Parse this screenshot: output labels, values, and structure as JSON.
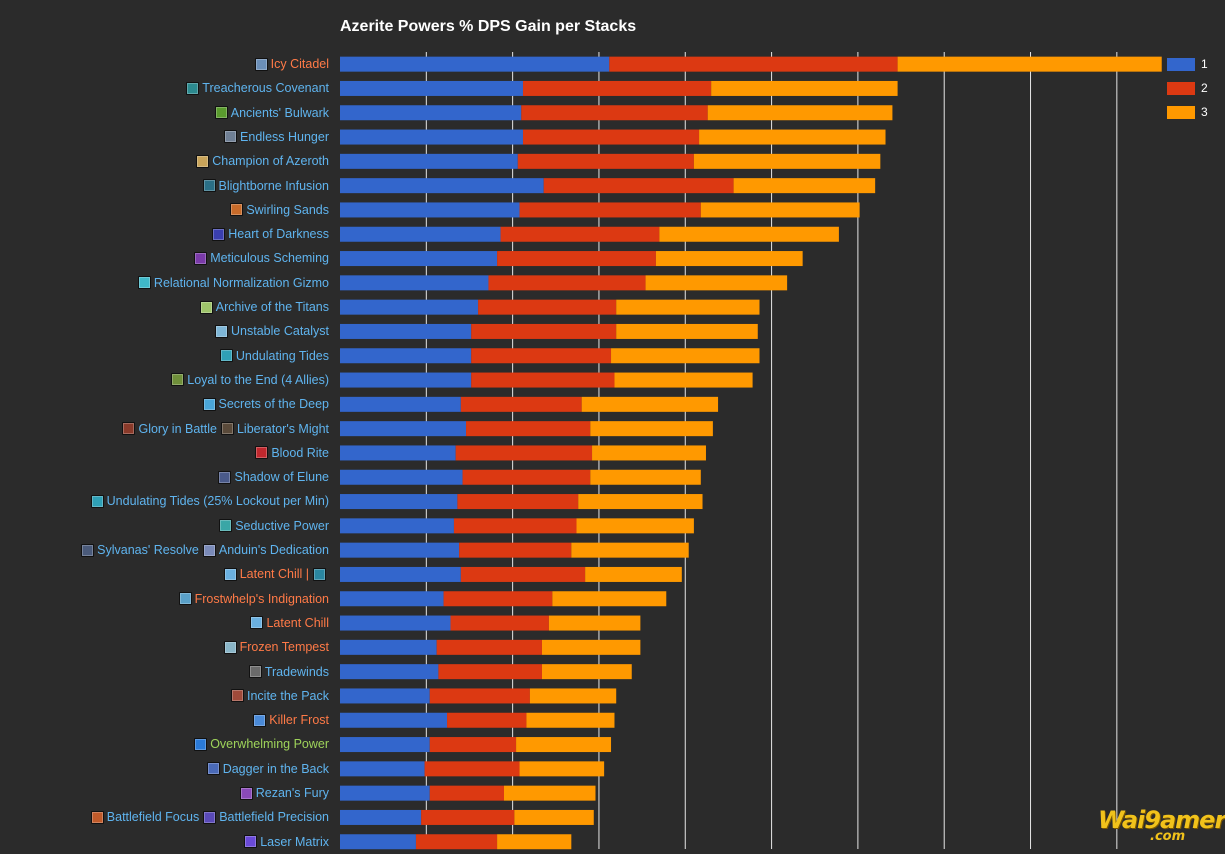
{
  "colors": {
    "background": "#2b2b2b",
    "grid": "#e6e6e6",
    "series": [
      "#3366cc",
      "#dc3912",
      "#ff9900"
    ],
    "label_blue": "#5fb4ef",
    "label_orange": "#ff7a47",
    "label_green": "#9ed35a"
  },
  "chart_data": {
    "type": "bar",
    "orientation": "horizontal",
    "stacked": true,
    "title": "Azerite Powers % DPS Gain per Stacks",
    "xlim": [
      0,
      4.75
    ],
    "grid": true,
    "legend_position": "top-right",
    "series": [
      {
        "name": "1",
        "values": [
          1.56,
          1.06,
          1.05,
          1.06,
          1.03,
          1.18,
          1.04,
          0.93,
          0.91,
          0.86,
          0.8,
          0.76,
          0.76,
          0.76,
          0.7,
          0.73,
          0.67,
          0.71,
          0.68,
          0.66,
          0.69,
          0.7,
          0.6,
          0.64,
          0.56,
          0.57,
          0.52,
          0.62,
          0.52,
          0.49,
          0.52,
          0.47,
          0.44
        ]
      },
      {
        "name": "2",
        "values": [
          1.67,
          1.09,
          1.08,
          1.02,
          1.02,
          1.1,
          1.05,
          0.92,
          0.92,
          0.91,
          0.8,
          0.84,
          0.81,
          0.83,
          0.7,
          0.72,
          0.79,
          0.74,
          0.7,
          0.71,
          0.65,
          0.72,
          0.63,
          0.57,
          0.61,
          0.6,
          0.58,
          0.46,
          0.5,
          0.55,
          0.43,
          0.54,
          0.47
        ]
      },
      {
        "name": "3",
        "values": [
          1.53,
          1.08,
          1.07,
          1.08,
          1.08,
          0.82,
          0.92,
          1.04,
          0.85,
          0.82,
          0.83,
          0.82,
          0.86,
          0.8,
          0.79,
          0.71,
          0.66,
          0.64,
          0.72,
          0.68,
          0.68,
          0.56,
          0.66,
          0.53,
          0.57,
          0.52,
          0.5,
          0.51,
          0.55,
          0.49,
          0.53,
          0.46,
          0.43
        ]
      }
    ],
    "categories": [
      {
        "parts": [
          {
            "text": "Icy Citadel",
            "color": "orange",
            "icon": "icy-citadel-icon",
            "icon_color": "#6b8fb8"
          }
        ]
      },
      {
        "parts": [
          {
            "text": "Treacherous Covenant",
            "color": "blue",
            "icon": "treacherous-covenant-icon",
            "icon_color": "#2c8a8f"
          }
        ]
      },
      {
        "parts": [
          {
            "text": "Ancients' Bulwark",
            "color": "blue",
            "icon": "ancients-bulwark-icon",
            "icon_color": "#5a9b2e"
          }
        ]
      },
      {
        "parts": [
          {
            "text": "Endless Hunger",
            "color": "blue",
            "icon": "endless-hunger-icon",
            "icon_color": "#6f7f94"
          }
        ]
      },
      {
        "parts": [
          {
            "text": "Champion of Azeroth",
            "color": "blue",
            "icon": "champion-of-azeroth-icon",
            "icon_color": "#c9a45a"
          }
        ]
      },
      {
        "parts": [
          {
            "text": "Blightborne Infusion",
            "color": "blue",
            "icon": "blightborne-infusion-icon",
            "icon_color": "#2a6f86"
          }
        ]
      },
      {
        "parts": [
          {
            "text": "Swirling Sands",
            "color": "blue",
            "icon": "swirling-sands-icon",
            "icon_color": "#c86b2a"
          }
        ]
      },
      {
        "parts": [
          {
            "text": "Heart of Darkness",
            "color": "blue",
            "icon": "heart-of-darkness-icon",
            "icon_color": "#3a3fb0"
          }
        ]
      },
      {
        "parts": [
          {
            "text": "Meticulous Scheming",
            "color": "blue",
            "icon": "meticulous-scheming-icon",
            "icon_color": "#7a3aa8"
          }
        ]
      },
      {
        "parts": [
          {
            "text": "Relational Normalization Gizmo",
            "color": "blue",
            "icon": "relational-normalization-gizmo-icon",
            "icon_color": "#3fb8c8"
          }
        ]
      },
      {
        "parts": [
          {
            "text": "Archive of the Titans",
            "color": "blue",
            "icon": "archive-of-the-titans-icon",
            "icon_color": "#9ec46a"
          }
        ]
      },
      {
        "parts": [
          {
            "text": "Unstable Catalyst",
            "color": "blue",
            "icon": "unstable-catalyst-icon",
            "icon_color": "#7fb6d6"
          }
        ]
      },
      {
        "parts": [
          {
            "text": "Undulating Tides",
            "color": "blue",
            "icon": "undulating-tides-icon",
            "icon_color": "#2fa0b6"
          }
        ]
      },
      {
        "parts": [
          {
            "text": "Loyal to the End (4 Allies)",
            "color": "blue",
            "icon": "loyal-to-the-end-icon",
            "icon_color": "#6f8f3a"
          }
        ]
      },
      {
        "parts": [
          {
            "text": "Secrets of the Deep",
            "color": "blue",
            "icon": "secrets-of-the-deep-icon",
            "icon_color": "#4aa6d8"
          }
        ]
      },
      {
        "parts": [
          {
            "text": "Glory in Battle",
            "color": "blue",
            "icon": "glory-in-battle-icon",
            "icon_color": "#8a3a2a"
          },
          {
            "text": "Liberator's Might",
            "color": "blue",
            "icon": "liberators-might-icon",
            "icon_color": "#5a4a3a"
          }
        ]
      },
      {
        "parts": [
          {
            "text": "Blood Rite",
            "color": "blue",
            "icon": "blood-rite-icon",
            "icon_color": "#c0282e"
          }
        ]
      },
      {
        "parts": [
          {
            "text": "Shadow of Elune",
            "color": "blue",
            "icon": "shadow-of-elune-icon",
            "icon_color": "#4a5a8a"
          }
        ]
      },
      {
        "parts": [
          {
            "text": "Undulating Tides (25% Lockout per Min)",
            "color": "blue",
            "icon": "undulating-tides-lockout-icon",
            "icon_color": "#2fa0b6"
          }
        ]
      },
      {
        "parts": [
          {
            "text": "Seductive Power",
            "color": "blue",
            "icon": "seductive-power-icon",
            "icon_color": "#3aa6a6"
          }
        ]
      },
      {
        "parts": [
          {
            "text": "Sylvanas' Resolve",
            "color": "blue",
            "icon": "sylvanas-resolve-icon",
            "icon_color": "#4a5a7a"
          },
          {
            "text": "Anduin's Dedication",
            "color": "blue",
            "icon": "anduins-dedication-icon",
            "icon_color": "#7a8ab8"
          }
        ]
      },
      {
        "parts": [
          {
            "text": "Latent Chill |",
            "color": "orange",
            "icon": "latent-chill-icon",
            "icon_color": "#6ab0e0"
          },
          {
            "text": "",
            "color": "orange",
            "icon": "latent-chill-alt-icon",
            "icon_color": "#2a86a0"
          }
        ]
      },
      {
        "parts": [
          {
            "text": "Frostwhelp's Indignation",
            "color": "orange",
            "icon": "frostwhelps-indignation-icon",
            "icon_color": "#5aa0c8"
          }
        ]
      },
      {
        "parts": [
          {
            "text": "Latent Chill",
            "color": "orange",
            "icon": "latent-chill-icon-2",
            "icon_color": "#6ab0e0"
          }
        ]
      },
      {
        "parts": [
          {
            "text": "Frozen Tempest",
            "color": "orange",
            "icon": "frozen-tempest-icon",
            "icon_color": "#8ab6c8"
          }
        ]
      },
      {
        "parts": [
          {
            "text": "Tradewinds",
            "color": "blue",
            "icon": "tradewinds-icon",
            "icon_color": "#6a6a6a"
          }
        ]
      },
      {
        "parts": [
          {
            "text": "Incite the Pack",
            "color": "blue",
            "icon": "incite-the-pack-icon",
            "icon_color": "#a04a3a"
          }
        ]
      },
      {
        "parts": [
          {
            "text": "Killer Frost",
            "color": "orange",
            "icon": "killer-frost-icon",
            "icon_color": "#4a8ad8"
          }
        ]
      },
      {
        "parts": [
          {
            "text": "Overwhelming Power",
            "color": "green",
            "icon": "overwhelming-power-icon",
            "icon_color": "#2a7ad8"
          }
        ]
      },
      {
        "parts": [
          {
            "text": "Dagger in the Back",
            "color": "blue",
            "icon": "dagger-in-the-back-icon",
            "icon_color": "#4a6ab8"
          }
        ]
      },
      {
        "parts": [
          {
            "text": "Rezan's Fury",
            "color": "blue",
            "icon": "rezans-fury-icon",
            "icon_color": "#8a4ab8"
          }
        ]
      },
      {
        "parts": [
          {
            "text": "Battlefield Focus",
            "color": "blue",
            "icon": "battlefield-focus-icon",
            "icon_color": "#c05a2a"
          },
          {
            "text": "Battlefield Precision",
            "color": "blue",
            "icon": "battlefield-precision-icon",
            "icon_color": "#5a4ab8"
          }
        ]
      },
      {
        "parts": [
          {
            "text": "Laser Matrix",
            "color": "blue",
            "icon": "laser-matrix-icon",
            "icon_color": "#6a4ad8"
          }
        ]
      }
    ]
  },
  "watermark": {
    "main": "Wai9amer",
    "sub": ".com"
  }
}
